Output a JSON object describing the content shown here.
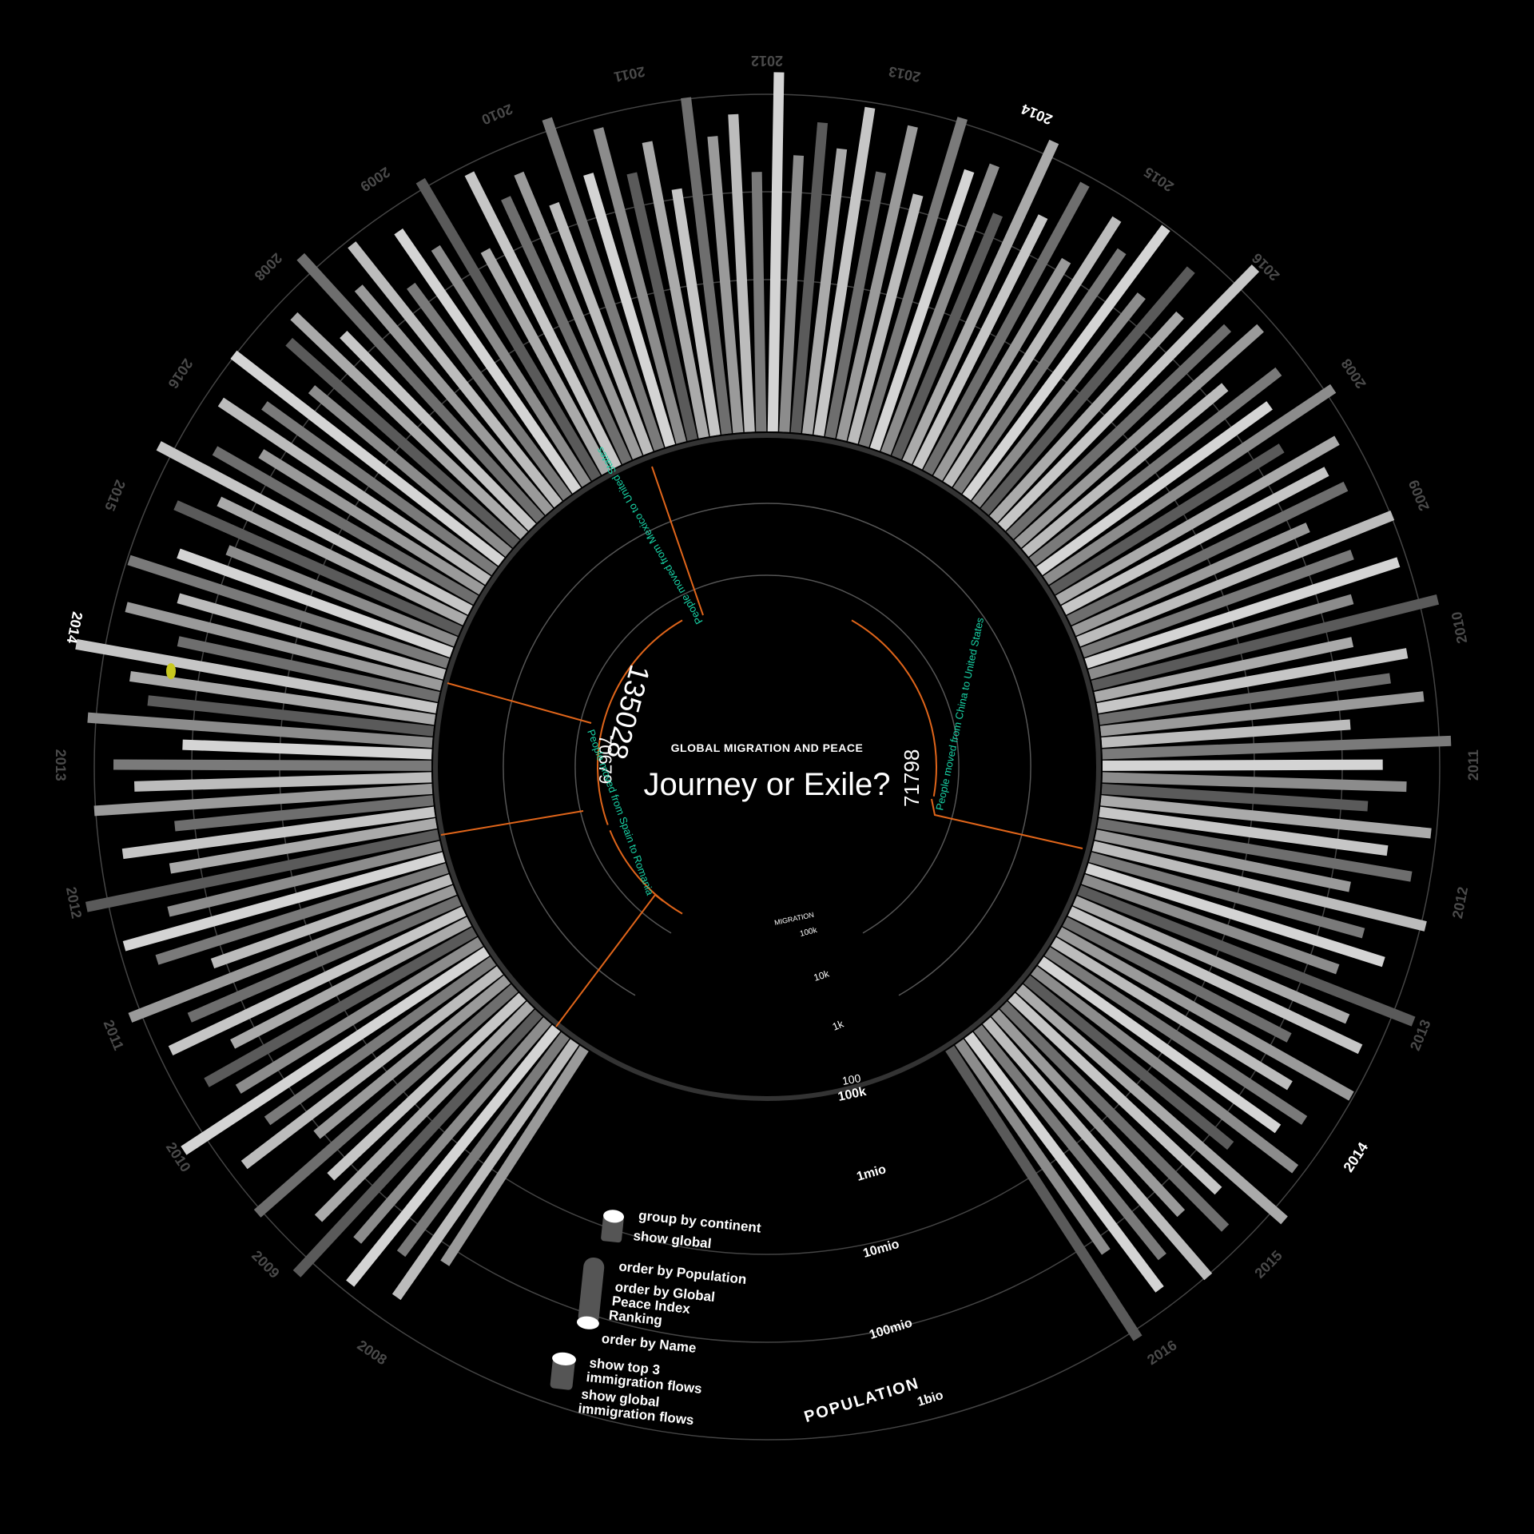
{
  "header": {
    "kicker": "GLOBAL MIGRATION AND PEACE",
    "title": "Journey or Exile?"
  },
  "flows": [
    {
      "value": "135028",
      "label": "People moved from Mexico to United States"
    },
    {
      "value": "70679",
      "label": "People moved from Spain to Romania"
    },
    {
      "value": "71798",
      "label": "People moved from China to United States"
    }
  ],
  "migration_scale": {
    "title": "MIGRATION",
    "ticks": [
      "100k",
      "10k",
      "1k",
      "100"
    ]
  },
  "population_scale": {
    "title": "POPULATION",
    "ticks": [
      "100k",
      "1mio",
      "10mio",
      "100mio",
      "1bio"
    ]
  },
  "controls": {
    "group_by_continent": "group by continent",
    "show_global": "show global",
    "order_by_population": "order by Population",
    "order_by_gpi_line1": "order by Global",
    "order_by_gpi_line2": "Peace Index",
    "order_by_gpi_line3": "Ranking",
    "order_by_name": "order by Name",
    "show_top3_line1": "show top 3",
    "show_top3_line2": "immigration flows",
    "show_global_flows_line1": "show global",
    "show_global_flows_line2": "immigration flows"
  },
  "colors": {
    "background": "#000000",
    "accent_orange": "#e0651a",
    "accent_teal": "#18d3a6",
    "marker_yellow": "#c8c81e"
  },
  "year_labels": [
    "2008",
    "2009",
    "2010",
    "2011",
    "2012",
    "2013",
    "2014",
    "2015",
    "2016",
    "2008",
    "2009",
    "2010",
    "2011",
    "2012",
    "2013",
    "2014",
    "2015",
    "2016",
    "2008",
    "2009",
    "2010",
    "2011",
    "2012",
    "2013",
    "2014",
    "2015",
    "2016"
  ],
  "highlight_year": "2014",
  "chart_data": {
    "type": "bar",
    "layout": "radial",
    "series_count": 150,
    "bars": [
      {
        "v": 0.42
      },
      {
        "v": 0.58
      },
      {
        "v": 0.47
      },
      {
        "v": 0.63
      },
      {
        "v": 0.52
      },
      {
        "v": 0.71
      },
      {
        "v": 0.55
      },
      {
        "v": 0.44
      },
      {
        "v": 0.67
      },
      {
        "v": 0.39
      },
      {
        "v": 0.61
      },
      {
        "v": 0.48
      },
      {
        "v": 0.73
      },
      {
        "v": 0.5
      },
      {
        "v": 0.57
      },
      {
        "v": 0.45
      },
      {
        "v": 0.62
      },
      {
        "v": 0.53
      },
      {
        "v": 0.69
      },
      {
        "v": 0.41
      },
      {
        "v": 0.56
      },
      {
        "v": 0.64
      },
      {
        "v": 0.49
      },
      {
        "v": 0.72
      },
      {
        "v": 0.46
      },
      {
        "v": 0.59
      },
      {
        "v": 0.43
      },
      {
        "v": 0.66
      },
      {
        "v": 0.54
      },
      {
        "v": 0.6
      },
      {
        "v": 0.4
      },
      {
        "v": 0.68
      },
      {
        "v": 0.51
      },
      {
        "v": 0.57
      },
      {
        "v": 0.74
      },
      {
        "v": 0.45
      },
      {
        "v": 0.62
      },
      {
        "v": 0.48
      },
      {
        "v": 0.65
      },
      {
        "v": 0.52
      },
      {
        "v": 0.39
      },
      {
        "v": 0.58
      },
      {
        "v": 0.47
      },
      {
        "v": 0.7
      },
      {
        "v": 0.55
      },
      {
        "v": 0.43
      },
      {
        "v": 0.61
      },
      {
        "v": 0.5
      },
      {
        "v": 0.66
      },
      {
        "v": 0.42
      },
      {
        "v": 0.56
      },
      {
        "v": 0.6
      },
      {
        "v": 0.46
      },
      {
        "v": 0.71
      },
      {
        "v": 0.53
      },
      {
        "v": 0.64
      },
      {
        "v": 0.44
      },
      {
        "v": 0.59
      },
      {
        "v": 0.49
      },
      {
        "v": 0.68
      },
      {
        "v": 0.41
      },
      {
        "v": 0.63
      },
      {
        "v": 0.52
      },
      {
        "v": 0.57
      },
      {
        "v": 0.45
      },
      {
        "v": 0.69
      },
      {
        "v": 0.5
      },
      {
        "v": 0.62
      },
      {
        "v": 0.47
      },
      {
        "v": 0.55
      },
      {
        "v": 0.4
      },
      {
        "v": 0.66
      },
      {
        "v": 0.54
      },
      {
        "v": 0.6
      },
      {
        "v": 0.43
      },
      {
        "v": 0.72
      },
      {
        "v": 0.48
      },
      {
        "v": 0.58
      },
      {
        "v": 0.51
      },
      {
        "v": 0.64
      },
      {
        "v": 0.46
      },
      {
        "v": 0.61
      },
      {
        "v": 0.42
      },
      {
        "v": 0.67
      },
      {
        "v": 0.53
      },
      {
        "v": 0.57
      },
      {
        "v": 0.44
      },
      {
        "v": 0.7
      },
      {
        "v": 0.49
      },
      {
        "v": 0.63
      },
      {
        "v": 0.41
      },
      {
        "v": 0.59
      },
      {
        "v": 0.52
      },
      {
        "v": 0.65
      },
      {
        "v": 0.45
      },
      {
        "v": 0.6
      },
      {
        "v": 0.48
      },
      {
        "v": 0.73
      },
      {
        "v": 0.55
      },
      {
        "v": 0.62
      },
      {
        "v": 0.43
      },
      {
        "v": 0.58
      },
      {
        "v": 0.5
      },
      {
        "v": 0.68
      },
      {
        "v": 0.46
      },
      {
        "v": 0.61
      },
      {
        "v": 0.54
      },
      {
        "v": 0.57
      },
      {
        "v": 0.42
      },
      {
        "v": 0.66
      },
      {
        "v": 0.51
      },
      {
        "v": 0.63
      },
      {
        "v": 0.47
      },
      {
        "v": 0.71
      },
      {
        "v": 0.44
      },
      {
        "v": 0.59
      },
      {
        "v": 0.53
      },
      {
        "v": 0.62
      },
      {
        "v": 0.4
      },
      {
        "v": 0.69
      },
      {
        "v": 0.49
      },
      {
        "v": 0.56
      },
      {
        "v": 0.45
      },
      {
        "v": 0.64
      },
      {
        "v": 0.52
      },
      {
        "v": 0.6
      },
      {
        "v": 0.43
      },
      {
        "v": 0.67
      },
      {
        "v": 0.5
      },
      {
        "v": 0.58
      },
      {
        "v": 0.46
      },
      {
        "v": 0.72
      },
      {
        "v": 0.54
      },
      {
        "v": 0.61
      },
      {
        "v": 0.41
      },
      {
        "v": 0.65
      },
      {
        "v": 0.48
      },
      {
        "v": 0.57
      },
      {
        "v": 0.52
      },
      {
        "v": 0.63
      },
      {
        "v": 0.44
      },
      {
        "v": 0.7
      },
      {
        "v": 0.5
      },
      {
        "v": 0.59
      },
      {
        "v": 0.47
      },
      {
        "v": 0.66
      },
      {
        "v": 0.53
      },
      {
        "v": 0.6
      },
      {
        "v": 0.42
      },
      {
        "v": 0.68
      }
    ]
  }
}
